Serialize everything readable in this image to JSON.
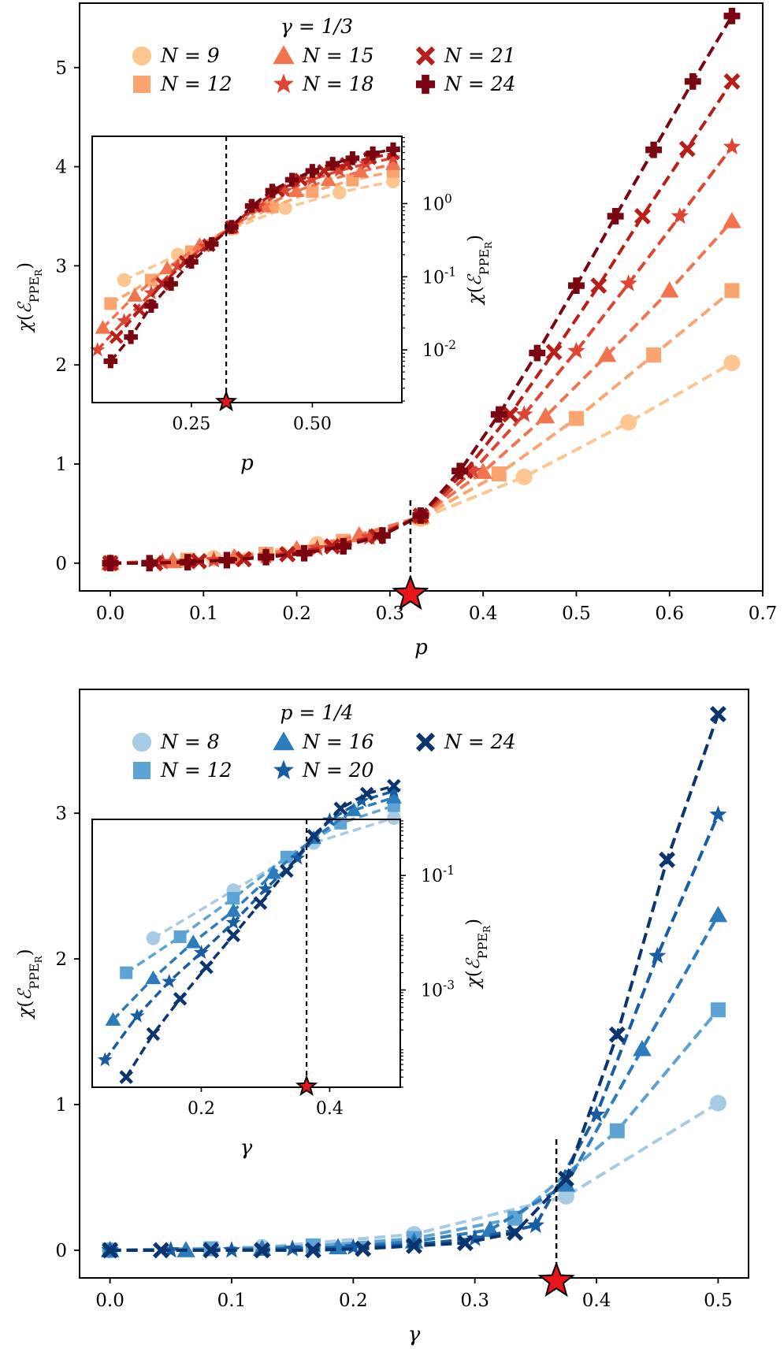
{
  "chart_data": [
    {
      "id": "top",
      "type": "line",
      "xlabel": "p",
      "ylabel": "χ(ℰPPE_R)",
      "xlim": [
        -0.033,
        0.7
      ],
      "ylim": [
        -0.28,
        5.65
      ],
      "xticks": [
        0.0,
        0.1,
        0.2,
        0.3,
        0.4,
        0.5,
        0.6,
        0.7
      ],
      "xtick_labels": [
        "0.0",
        "0.1",
        "0.2",
        "0.3",
        "0.4",
        "0.5",
        "0.6",
        "0.7"
      ],
      "yticks": [
        0,
        1,
        2,
        3,
        4,
        5
      ],
      "ytick_labels": [
        "0",
        "1",
        "2",
        "3",
        "4",
        "5"
      ],
      "critical_x": 0.322,
      "legend_title": "γ = 1/3",
      "legend_placement": "top-left",
      "series": [
        {
          "name": "N = 9",
          "label": "N = 9",
          "marker": "circle",
          "color": "#fdc58f",
          "x": [
            0.0,
            0.111,
            0.222,
            0.333,
            0.444,
            0.556,
            0.667
          ],
          "y": [
            0.0,
            0.05,
            0.19,
            0.45,
            0.87,
            1.42,
            2.02
          ]
        },
        {
          "name": "N = 12",
          "label": "N = 12",
          "marker": "square",
          "color": "#fca46f",
          "x": [
            0.0,
            0.083,
            0.167,
            0.25,
            0.333,
            0.417,
            0.5,
            0.583,
            0.667
          ],
          "y": [
            0.0,
            0.03,
            0.09,
            0.22,
            0.46,
            0.9,
            1.46,
            2.1,
            2.75
          ]
        },
        {
          "name": "N = 15",
          "label": "N = 15",
          "marker": "triangle",
          "color": "#f2744f",
          "x": [
            0.0,
            0.067,
            0.133,
            0.2,
            0.267,
            0.333,
            0.4,
            0.467,
            0.533,
            0.6,
            0.667
          ],
          "y": [
            0.0,
            0.02,
            0.06,
            0.14,
            0.28,
            0.47,
            0.92,
            1.48,
            2.1,
            2.75,
            3.45
          ]
        },
        {
          "name": "N = 18",
          "label": "N = 18",
          "marker": "star",
          "color": "#de4633",
          "x": [
            0.0,
            0.056,
            0.111,
            0.167,
            0.222,
            0.278,
            0.333,
            0.389,
            0.444,
            0.5,
            0.556,
            0.611,
            0.667
          ],
          "y": [
            0.0,
            0.01,
            0.03,
            0.07,
            0.15,
            0.26,
            0.47,
            0.93,
            1.5,
            2.14,
            2.82,
            3.5,
            4.2
          ]
        },
        {
          "name": "N = 21",
          "label": "N = 21",
          "marker": "x",
          "color": "#b91d18",
          "x": [
            0.0,
            0.048,
            0.095,
            0.143,
            0.19,
            0.238,
            0.286,
            0.333,
            0.381,
            0.429,
            0.476,
            0.524,
            0.571,
            0.619,
            0.667
          ],
          "y": [
            0.0,
            0.0,
            0.02,
            0.04,
            0.09,
            0.17,
            0.27,
            0.48,
            0.93,
            1.5,
            2.13,
            2.8,
            3.5,
            4.18,
            4.86
          ]
        },
        {
          "name": "N = 24",
          "label": "N = 24",
          "marker": "plus",
          "color": "#7a0510",
          "x": [
            0.0,
            0.042,
            0.083,
            0.125,
            0.167,
            0.208,
            0.25,
            0.292,
            0.333,
            0.375,
            0.417,
            0.458,
            0.5,
            0.542,
            0.583,
            0.625,
            0.667
          ],
          "y": [
            0.0,
            0.0,
            0.01,
            0.03,
            0.06,
            0.1,
            0.17,
            0.28,
            0.48,
            0.93,
            1.5,
            2.12,
            2.8,
            3.5,
            4.17,
            4.86,
            5.52
          ]
        }
      ],
      "inset": {
        "xlabel": "p",
        "ylabel": "χ(ℰPPE_R)",
        "yscale": "log",
        "xlim": [
          0.045,
          0.685
        ],
        "ylim_log10": [
          -2.72,
          0.92
        ],
        "xticks": [
          0.25,
          0.5
        ],
        "xtick_labels": [
          "0.25",
          "0.50"
        ],
        "yticks_log10": [
          -2,
          -1,
          0
        ],
        "ytick_labels": [
          "10^{-2}",
          "10^{-1}",
          "10^{0}"
        ],
        "critical_x": 0.322,
        "series": [
          {
            "name": "N = 9",
            "x": [
              0.111,
              0.222,
              0.333,
              0.444,
              0.556,
              0.667
            ],
            "y": [
              0.09,
              0.2,
              0.45,
              0.87,
              1.42,
              2.02
            ]
          },
          {
            "name": "N = 12",
            "x": [
              0.083,
              0.167,
              0.25,
              0.333,
              0.417,
              0.5,
              0.583,
              0.667
            ],
            "y": [
              0.043,
              0.09,
              0.22,
              0.46,
              0.9,
              1.46,
              2.1,
              2.75
            ]
          },
          {
            "name": "N = 15",
            "x": [
              0.067,
              0.133,
              0.2,
              0.267,
              0.333,
              0.4,
              0.467,
              0.533,
              0.6,
              0.667
            ],
            "y": [
              0.02,
              0.055,
              0.13,
              0.27,
              0.47,
              0.92,
              1.48,
              2.1,
              2.75,
              3.45
            ]
          },
          {
            "name": "N = 18",
            "x": [
              0.056,
              0.111,
              0.167,
              0.222,
              0.278,
              0.333,
              0.389,
              0.444,
              0.5,
              0.556,
              0.611,
              0.667
            ],
            "y": [
              0.01,
              0.025,
              0.06,
              0.14,
              0.26,
              0.47,
              0.93,
              1.5,
              2.14,
              2.82,
              3.5,
              4.2
            ]
          },
          {
            "name": "N = 21",
            "x": [
              0.095,
              0.143,
              0.19,
              0.238,
              0.286,
              0.333,
              0.381,
              0.429,
              0.476,
              0.524,
              0.571,
              0.619,
              0.667
            ],
            "y": [
              0.015,
              0.035,
              0.08,
              0.16,
              0.27,
              0.48,
              0.93,
              1.5,
              2.13,
              2.8,
              3.5,
              4.18,
              4.86
            ]
          },
          {
            "name": "N = 24",
            "x": [
              0.083,
              0.125,
              0.167,
              0.208,
              0.25,
              0.292,
              0.333,
              0.375,
              0.417,
              0.458,
              0.5,
              0.542,
              0.583,
              0.625,
              0.667
            ],
            "y": [
              0.007,
              0.015,
              0.04,
              0.08,
              0.16,
              0.28,
              0.48,
              0.93,
              1.5,
              2.12,
              2.8,
              3.5,
              4.17,
              4.86,
              5.52
            ]
          }
        ]
      }
    },
    {
      "id": "bottom",
      "type": "line",
      "xlabel": "γ",
      "ylabel": "χ(ℰPPE_R)",
      "xlim": [
        -0.025,
        0.525
      ],
      "ylim": [
        -0.19,
        3.85
      ],
      "xticks": [
        0.0,
        0.1,
        0.2,
        0.3,
        0.4,
        0.5
      ],
      "xtick_labels": [
        "0.0",
        "0.1",
        "0.2",
        "0.3",
        "0.4",
        "0.5"
      ],
      "yticks": [
        0,
        1,
        2,
        3
      ],
      "ytick_labels": [
        "0",
        "1",
        "2",
        "3"
      ],
      "critical_x": 0.367,
      "legend_title": "p = 1/4",
      "legend_placement": "top-left",
      "series": [
        {
          "name": "N = 8",
          "label": "N = 8",
          "marker": "circle",
          "color": "#a6cbe3",
          "x": [
            0.0,
            0.125,
            0.25,
            0.375,
            0.5
          ],
          "y": [
            0.0,
            0.02,
            0.11,
            0.37,
            1.01
          ]
        },
        {
          "name": "N = 12",
          "label": "N = 12",
          "marker": "square",
          "color": "#5da4d4",
          "x": [
            0.0,
            0.083,
            0.167,
            0.25,
            0.333,
            0.417,
            0.5
          ],
          "y": [
            0.0,
            0.01,
            0.03,
            0.08,
            0.22,
            0.82,
            1.65
          ]
        },
        {
          "name": "N = 16",
          "label": "N = 16",
          "marker": "triangle",
          "color": "#2c7bbd",
          "x": [
            0.0,
            0.0625,
            0.125,
            0.1875,
            0.25,
            0.3125,
            0.375,
            0.4375,
            0.5
          ],
          "y": [
            0.0,
            0.0,
            0.01,
            0.02,
            0.06,
            0.14,
            0.45,
            1.38,
            2.3
          ]
        },
        {
          "name": "N = 20",
          "label": "N = 20",
          "marker": "star",
          "color": "#175da3",
          "x": [
            0.0,
            0.05,
            0.1,
            0.15,
            0.2,
            0.25,
            0.3,
            0.35,
            0.4,
            0.45,
            0.5
          ],
          "y": [
            0.0,
            0.0,
            0.0,
            0.01,
            0.02,
            0.04,
            0.08,
            0.17,
            0.93,
            2.02,
            2.99
          ]
        },
        {
          "name": "N = 24",
          "label": "N = 24",
          "marker": "x",
          "color": "#0b3570",
          "x": [
            0.0,
            0.042,
            0.083,
            0.125,
            0.167,
            0.208,
            0.25,
            0.292,
            0.333,
            0.375,
            0.417,
            0.458,
            0.5
          ],
          "y": [
            0.0,
            0.0,
            0.0,
            0.0,
            0.0,
            0.01,
            0.03,
            0.05,
            0.12,
            0.49,
            1.48,
            2.68,
            3.68
          ]
        }
      ],
      "inset": {
        "xlabel": "γ",
        "ylabel": "χ(ℰPPE_R)",
        "yscale": "log",
        "xlim": [
          0.03,
          0.51
        ],
        "ylim_log10": [
          -4.7,
          -0.02
        ],
        "xticks": [
          0.2,
          0.4
        ],
        "xtick_labels": [
          "0.2",
          "0.4"
        ],
        "yticks_log10": [
          -3,
          -1
        ],
        "ytick_labels": [
          "10^{-3}",
          "10^{-1}"
        ],
        "critical_x": 0.364,
        "series": [
          {
            "name": "N = 8",
            "x": [
              0.125,
              0.25,
              0.375,
              0.5
            ],
            "y": [
              0.008,
              0.055,
              0.37,
              1.01
            ]
          },
          {
            "name": "N = 12",
            "x": [
              0.083,
              0.167,
              0.25,
              0.333,
              0.417,
              0.5
            ],
            "y": [
              0.002,
              0.0085,
              0.04,
              0.21,
              0.82,
              1.65
            ]
          },
          {
            "name": "N = 16",
            "x": [
              0.0625,
              0.125,
              0.1875,
              0.25,
              0.3125,
              0.375,
              0.4375,
              0.5
            ],
            "y": [
              0.0003,
              0.0016,
              0.0068,
              0.024,
              0.11,
              0.45,
              1.38,
              2.3
            ]
          },
          {
            "name": "N = 20",
            "x": [
              0.05,
              0.1,
              0.15,
              0.2,
              0.25,
              0.3,
              0.35,
              0.4,
              0.45,
              0.5
            ],
            "y": [
              6e-05,
              0.00035,
              0.0014,
              0.0045,
              0.015,
              0.058,
              0.2,
              0.93,
              2.02,
              2.99
            ]
          },
          {
            "name": "N = 24",
            "x": [
              0.083,
              0.125,
              0.167,
              0.208,
              0.25,
              0.292,
              0.333,
              0.375,
              0.417,
              0.458,
              0.5
            ],
            "y": [
              3e-05,
              0.00017,
              0.0007,
              0.0025,
              0.009,
              0.033,
              0.12,
              0.49,
              1.48,
              2.68,
              3.68
            ]
          }
        ]
      }
    }
  ]
}
